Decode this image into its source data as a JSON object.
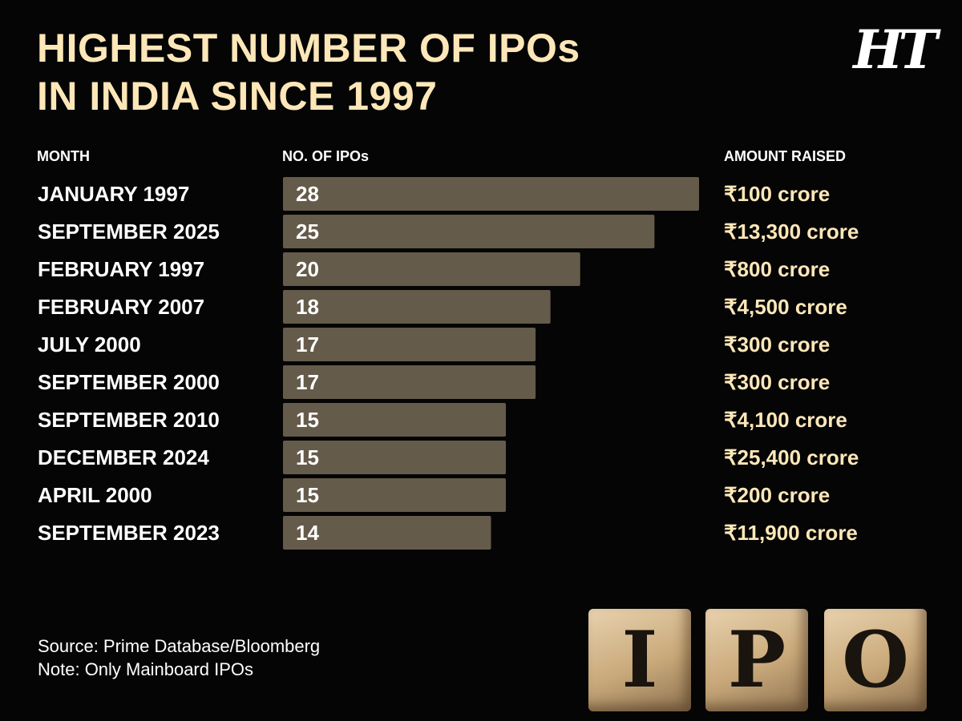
{
  "title_lines": [
    "HIGHEST NUMBER OF IPOs",
    "IN INDIA SINCE 1997"
  ],
  "logo": "HT",
  "columns": {
    "month": "MONTH",
    "count": "NO. OF IPOs",
    "amount": "AMOUNT RAISED"
  },
  "chart_data": {
    "type": "bar",
    "orientation": "horizontal",
    "title": "HIGHEST NUMBER OF IPOs IN INDIA SINCE 1997",
    "xlabel": "NO. OF IPOs",
    "ylabel": "MONTH",
    "xlim": [
      0,
      28
    ],
    "categories": [
      "JANUARY 1997",
      "SEPTEMBER 2025",
      "FEBRUARY 1997",
      "FEBRUARY 2007",
      "JULY 2000",
      "SEPTEMBER 2000",
      "SEPTEMBER 2010",
      "DECEMBER 2024",
      "APRIL 2000",
      "SEPTEMBER 2023"
    ],
    "values": [
      28,
      25,
      20,
      18,
      17,
      17,
      15,
      15,
      15,
      14
    ],
    "amounts": [
      "₹100 crore",
      "₹13,300 crore",
      "₹800 crore",
      "₹4,500 crore",
      "₹300 crore",
      "₹300 crore",
      "₹4,100 crore",
      "₹25,400 crore",
      "₹200 crore",
      "₹11,900 crore"
    ],
    "colors": {
      "bar": "#655b4a",
      "amount_text": "#fde7b8",
      "label_text": "#ffffff"
    }
  },
  "footer": {
    "source": "Source: Prime Database/Bloomberg",
    "note": "Note: Only Mainboard IPOs"
  },
  "background_blocks": [
    "I",
    "P",
    "O"
  ],
  "colors": {
    "title": "#fde7b8",
    "background": "#050505"
  }
}
